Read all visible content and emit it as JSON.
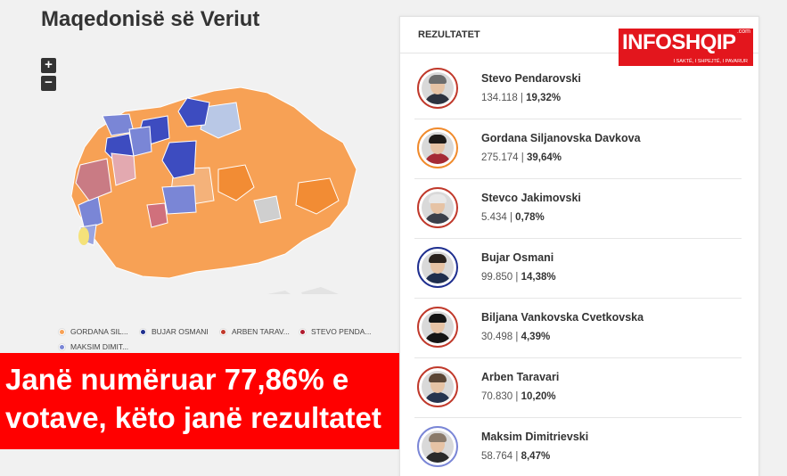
{
  "map": {
    "title": "Maqedonisë së Veriut",
    "zoom_in_label": "+",
    "zoom_out_label": "−"
  },
  "legend": [
    {
      "label": "GORDANA SIL...",
      "color": "#f7a155"
    },
    {
      "label": "BUJAR OSMANI",
      "color": "#1f2f8f"
    },
    {
      "label": "ARBEN TARAV...",
      "color": "#c0392b"
    },
    {
      "label": "STEVO PENDA...",
      "color": "#b01b2e"
    },
    {
      "label": "MAKSIM DIMIT...",
      "color": "#7a86d6"
    }
  ],
  "headline": {
    "line1": "Janë numëruar 77,86% e",
    "line2": "votave, këto janë rezultatet"
  },
  "logo": {
    "text": "INFOSHQIP",
    "domain": ".com",
    "tagline": "I SAKTË, I SHPEJTË, I PAVARUR"
  },
  "results": {
    "title": "REZULTATET",
    "candidates": [
      {
        "name": "Stevo Pendarovski",
        "votes": "134.118",
        "percent": "19,32%",
        "ring": "#c0392b",
        "hair": "#6d6d6d",
        "suit": "#2d3340"
      },
      {
        "name": "Gordana Siljanovska Davkova",
        "votes": "275.174",
        "percent": "39,64%",
        "ring": "#f08a2c",
        "hair": "#1e1a18",
        "suit": "#a52a35"
      },
      {
        "name": "Stevco Jakimovski",
        "votes": "5.434",
        "percent": "0,78%",
        "ring": "#c0392b",
        "hair": "#e8e8e8",
        "suit": "#3a3f4a"
      },
      {
        "name": "Bujar Osmani",
        "votes": "99.850",
        "percent": "14,38%",
        "ring": "#1f2f8f",
        "hair": "#2a221d",
        "suit": "#1f2e4d"
      },
      {
        "name": "Biljana Vankovska Cvetkovska",
        "votes": "30.498",
        "percent": "4,39%",
        "ring": "#c0392b",
        "hair": "#141414",
        "suit": "#151515"
      },
      {
        "name": "Arben Taravari",
        "votes": "70.830",
        "percent": "10,20%",
        "ring": "#c0392b",
        "hair": "#5b4636",
        "suit": "#25344f"
      },
      {
        "name": "Maksim Dimitrievski",
        "votes": "58.764",
        "percent": "8,47%",
        "ring": "#7a86d6",
        "hair": "#8a7a6a",
        "suit": "#2a2a2a"
      }
    ]
  }
}
